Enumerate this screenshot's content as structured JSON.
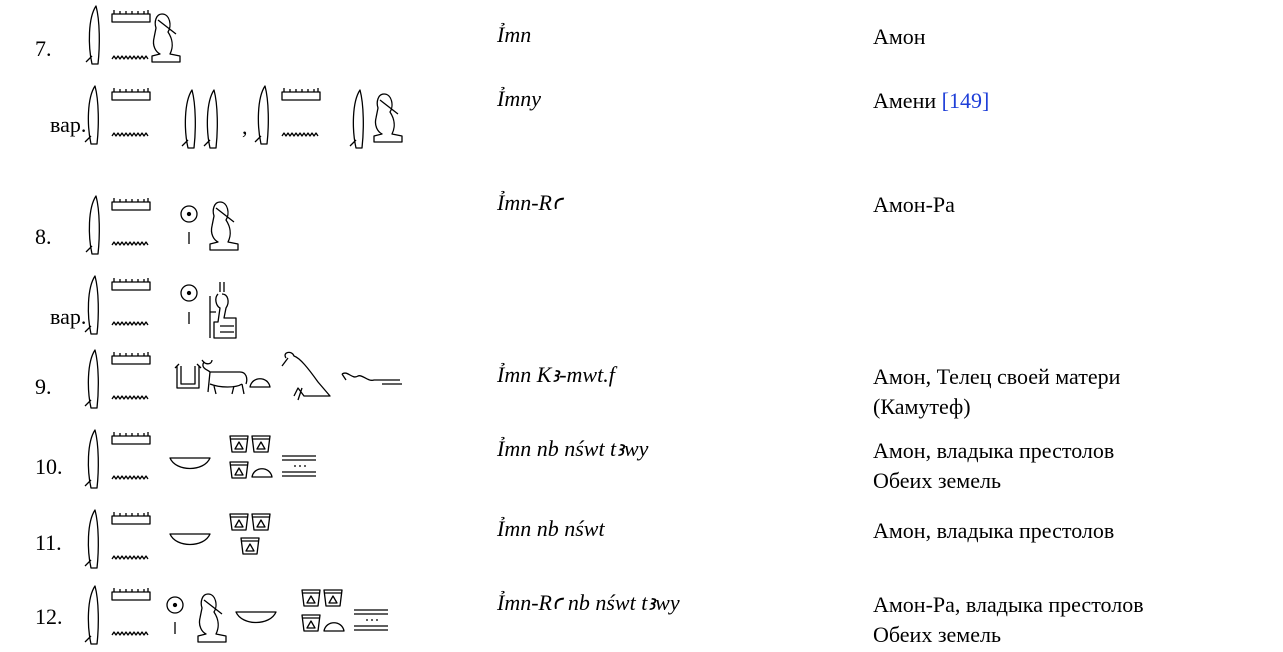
{
  "entries": [
    {
      "number": "7.",
      "translit": "Ỉmn",
      "translation": [
        "Амон"
      ]
    },
    {
      "variant": "вар.",
      "separator": ",",
      "translit": "Ỉmny",
      "translation": [
        "Амени"
      ],
      "ref": "[149]"
    },
    {
      "number": "8.",
      "translit": "Ỉmn-Rꜥ",
      "translation": [
        "Амон-Ра"
      ]
    },
    {
      "variant": "вар."
    },
    {
      "number": "9.",
      "translit": "Ỉmn Kꜣ-mwt.f",
      "translation": [
        "Амон, Телец своей матери",
        "(Камутеф)"
      ]
    },
    {
      "number": "10.",
      "translit": "Ỉmn nb nśwt tꜣwy",
      "translation": [
        "Амон, владыка престолов",
        "Обеих земель"
      ]
    },
    {
      "number": "11.",
      "translit": "Ỉmn nb nśwt",
      "translation": [
        "Амон, владыка престолов"
      ]
    },
    {
      "number": "12.",
      "translit": "Ỉmn-Rꜥ nb nśwt tꜣwy",
      "translation": [
        "Амон-Ра, владыка престолов",
        "Обеих земель"
      ]
    }
  ]
}
